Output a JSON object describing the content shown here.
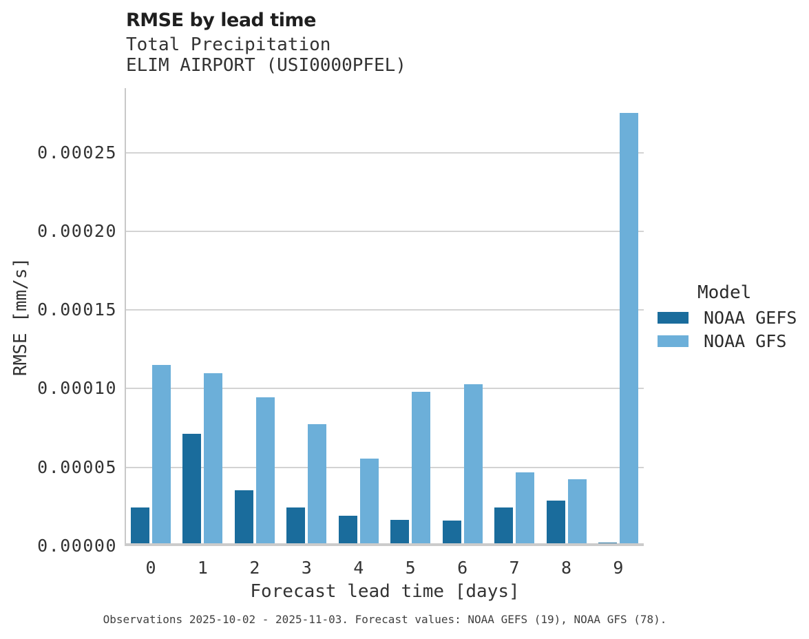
{
  "title": "RMSE by lead time",
  "subtitle_line1": "Total Precipitation",
  "subtitle_line2": "ELIM AIRPORT (USI0000PFEL)",
  "footer": "Observations 2025-10-02 - 2025-11-03. Forecast values: NOAA GEFS (19), NOAA GFS (78).",
  "legend": {
    "title": "Model",
    "entries": [
      {
        "label": "NOAA GEFS",
        "color": "#1a6c9c"
      },
      {
        "label": "NOAA GFS",
        "color": "#6cafd9"
      }
    ]
  },
  "colors": {
    "gefs_bar": "#1a6c9c",
    "gfs_bar": "#6cafd9",
    "gridline": "#d3d3d3",
    "axis": "#c8c8c8",
    "title_text": "#1f1f1f",
    "body_text": "#333333"
  },
  "chart_data": {
    "type": "bar",
    "title": "RMSE by lead time",
    "subtitle": [
      "Total Precipitation",
      "ELIM AIRPORT (USI0000PFEL)"
    ],
    "xlabel": "Forecast lead time [days]",
    "ylabel": "RMSE [mm/s]",
    "categories": [
      "0",
      "1",
      "2",
      "3",
      "4",
      "5",
      "6",
      "7",
      "8",
      "9"
    ],
    "series": [
      {
        "name": "NOAA GEFS",
        "color": "#1a6c9c",
        "values": [
          2.45e-05,
          7.15e-05,
          3.55e-05,
          2.45e-05,
          1.93e-05,
          1.68e-05,
          1.63e-05,
          2.45e-05,
          2.9e-05,
          2e-06
        ]
      },
      {
        "name": "NOAA GFS",
        "color": "#6cafd9",
        "values": [
          0.000115,
          0.00011,
          9.45e-05,
          7.75e-05,
          5.55e-05,
          9.8e-05,
          0.000103,
          4.7e-05,
          4.25e-05,
          0.000275
        ]
      }
    ],
    "yticks": [
      0,
      5e-05,
      0.0001,
      0.00015,
      0.0002,
      0.00025
    ],
    "ytick_labels": [
      "0.00000",
      "0.00005",
      "0.00010",
      "0.00015",
      "0.00020",
      "0.00025"
    ],
    "ylim": [
      0,
      0.00029
    ],
    "grid": "horizontal",
    "legend_title": "Model",
    "legend_position": "right",
    "caption": "Observations 2025-10-02 - 2025-11-03. Forecast values: NOAA GEFS (19), NOAA GFS (78)."
  }
}
